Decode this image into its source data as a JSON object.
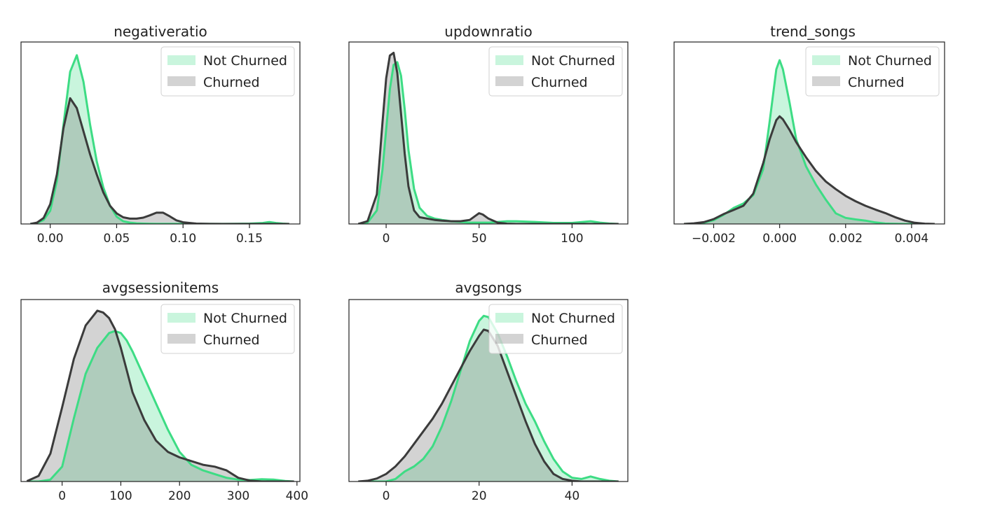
{
  "legend": {
    "not_churned": "Not Churned",
    "churned": "Churned",
    "position": "upper-right"
  },
  "colors": {
    "not_churned_line": "#3ddc84",
    "not_churned_fill": "rgba(61,220,132,0.28)",
    "churned_line": "#3b3b3b",
    "churned_fill": "rgba(120,120,120,0.33)",
    "overlap_tint": "#a3c5b0"
  },
  "chart_data": [
    {
      "type": "area",
      "title": "negativeratio",
      "xlim": [
        -0.022,
        0.188
      ],
      "ylim": [
        0,
        55
      ],
      "xticks": [
        0.0,
        0.05,
        0.1,
        0.15
      ],
      "xtick_labels": [
        "0.00",
        "0.05",
        "0.10",
        "0.15"
      ],
      "x": [
        -0.015,
        -0.01,
        -0.005,
        0.0,
        0.005,
        0.01,
        0.015,
        0.02,
        0.025,
        0.03,
        0.035,
        0.04,
        0.045,
        0.05,
        0.055,
        0.06,
        0.065,
        0.07,
        0.075,
        0.08,
        0.085,
        0.09,
        0.095,
        0.1,
        0.11,
        0.12,
        0.13,
        0.14,
        0.15,
        0.16,
        0.165,
        0.17,
        0.175,
        0.18
      ],
      "series": [
        {
          "name": "Not Churned",
          "values": [
            0,
            0.3,
            1.2,
            4.0,
            13,
            30,
            46,
            51,
            43,
            30,
            19,
            11,
            5.5,
            2.2,
            0.8,
            0.4,
            0.2,
            0.1,
            0.05,
            0.03,
            0.02,
            0.02,
            0.02,
            0.02,
            0.02,
            0.02,
            0.03,
            0.05,
            0.1,
            0.3,
            0.6,
            0.3,
            0.1,
            0
          ]
        },
        {
          "name": "Churned",
          "values": [
            0,
            0.4,
            1.8,
            6.0,
            15,
            29,
            38,
            35,
            28,
            21,
            15,
            9.5,
            5.5,
            3.2,
            2.0,
            1.6,
            1.6,
            1.9,
            2.6,
            3.4,
            3.4,
            2.3,
            1.1,
            0.5,
            0.1,
            0.02,
            0,
            0,
            0,
            0,
            0,
            0,
            0,
            0
          ]
        }
      ]
    },
    {
      "type": "area",
      "title": "updownratio",
      "xlim": [
        -20,
        130
      ],
      "ylim": [
        0,
        0.135
      ],
      "xticks": [
        0,
        50,
        100
      ],
      "xtick_labels": [
        "0",
        "50",
        "100"
      ],
      "x": [
        -15,
        -10,
        -5,
        -2,
        0,
        2,
        4,
        6,
        8,
        10,
        12,
        15,
        18,
        22,
        26,
        30,
        35,
        40,
        45,
        48,
        50,
        52,
        55,
        60,
        65,
        70,
        80,
        90,
        100,
        110,
        115,
        120,
        125
      ],
      "series": [
        {
          "name": "Not Churned",
          "values": [
            0,
            0.001,
            0.01,
            0.04,
            0.07,
            0.1,
            0.118,
            0.12,
            0.11,
            0.085,
            0.055,
            0.026,
            0.012,
            0.006,
            0.004,
            0.003,
            0.002,
            0.0015,
            0.001,
            0.001,
            0.001,
            0.001,
            0.001,
            0.0015,
            0.002,
            0.002,
            0.0015,
            0.0008,
            0.0008,
            0.002,
            0.001,
            0.0003,
            0
          ]
        },
        {
          "name": "Churned",
          "values": [
            0,
            0.002,
            0.022,
            0.075,
            0.108,
            0.125,
            0.127,
            0.112,
            0.082,
            0.052,
            0.028,
            0.01,
            0.005,
            0.004,
            0.003,
            0.0025,
            0.002,
            0.002,
            0.003,
            0.006,
            0.008,
            0.007,
            0.004,
            0.001,
            0.0002,
            0,
            0,
            0,
            0,
            0,
            0,
            0,
            0
          ]
        }
      ]
    },
    {
      "type": "area",
      "title": "trend_songs",
      "xlim": [
        -0.0032,
        0.005
      ],
      "ylim": [
        0,
        1200
      ],
      "xticks": [
        -0.002,
        0.0,
        0.002,
        0.004
      ],
      "xtick_labels": [
        "−0.002",
        "0.000",
        "0.002",
        "0.004"
      ],
      "x": [
        -0.0029,
        -0.0026,
        -0.0023,
        -0.002,
        -0.0017,
        -0.0014,
        -0.0011,
        -0.0008,
        -0.0005,
        -0.0003,
        -0.0001,
        0.0,
        0.0001,
        0.0003,
        0.0005,
        0.0008,
        0.0011,
        0.0014,
        0.0017,
        0.002,
        0.0023,
        0.0026,
        0.0029,
        0.0032,
        0.0035,
        0.0038,
        0.0041,
        0.0044,
        0.0047
      ],
      "series": [
        {
          "name": "Not Churned",
          "values": [
            0,
            2,
            8,
            25,
            60,
            105,
            135,
            190,
            360,
            680,
            1020,
            1080,
            1020,
            800,
            560,
            380,
            260,
            160,
            70,
            40,
            30,
            22,
            10,
            3,
            1,
            0,
            0,
            0,
            0
          ]
        },
        {
          "name": "Churned",
          "values": [
            0,
            4,
            12,
            32,
            65,
            92,
            120,
            200,
            400,
            560,
            685,
            710,
            690,
            620,
            540,
            440,
            350,
            280,
            230,
            185,
            150,
            120,
            95,
            72,
            45,
            22,
            8,
            2,
            0
          ]
        }
      ]
    },
    {
      "type": "area",
      "title": "avgsessionitems",
      "xlim": [
        -70,
        405
      ],
      "ylim": [
        0,
        0.0098
      ],
      "xticks": [
        0,
        100,
        200,
        300,
        400
      ],
      "xtick_labels": [
        "0",
        "100",
        "200",
        "300",
        "400"
      ],
      "x": [
        -60,
        -40,
        -20,
        0,
        20,
        40,
        60,
        70,
        80,
        90,
        100,
        110,
        120,
        140,
        160,
        180,
        200,
        220,
        240,
        260,
        280,
        300,
        320,
        340,
        360,
        380,
        395
      ],
      "series": [
        {
          "name": "Not Churned",
          "values": [
            0,
            0,
            0.0001,
            0.0008,
            0.0034,
            0.0058,
            0.0072,
            0.0076,
            0.008,
            0.0081,
            0.008,
            0.0076,
            0.007,
            0.0056,
            0.0042,
            0.0028,
            0.0016,
            0.0009,
            0.0006,
            0.0004,
            0.0002,
            0.0001,
            8e-05,
            0.00012,
            0.0001,
            3e-05,
            0
          ]
        },
        {
          "name": "Churned",
          "values": [
            2e-05,
            0.0003,
            0.0015,
            0.004,
            0.0066,
            0.0084,
            0.0092,
            0.0091,
            0.0088,
            0.0082,
            0.0072,
            0.006,
            0.0048,
            0.0033,
            0.0022,
            0.0016,
            0.0013,
            0.0011,
            0.0009,
            0.0008,
            0.0006,
            0.0002,
            5e-05,
            0,
            0,
            0,
            0
          ]
        }
      ]
    },
    {
      "type": "area",
      "title": "avgsongs",
      "xlim": [
        -8,
        52
      ],
      "ylim": [
        0,
        0.0725
      ],
      "xticks": [
        0,
        20,
        40
      ],
      "xtick_labels": [
        "0",
        "20",
        "40"
      ],
      "x": [
        -6,
        -4,
        -2,
        0,
        2,
        4,
        6,
        8,
        10,
        12,
        14,
        16,
        18,
        20,
        21,
        22,
        24,
        26,
        28,
        30,
        32,
        34,
        36,
        38,
        40,
        42,
        44,
        46,
        48,
        50
      ],
      "series": [
        {
          "name": "Not Churned",
          "values": [
            0,
            0,
            0,
            0,
            0.001,
            0.004,
            0.006,
            0.009,
            0.014,
            0.022,
            0.032,
            0.044,
            0.056,
            0.064,
            0.066,
            0.0655,
            0.059,
            0.05,
            0.04,
            0.031,
            0.024,
            0.016,
            0.009,
            0.004,
            0.0015,
            0.001,
            0.002,
            0.001,
            0.0003,
            0
          ]
        },
        {
          "name": "Churned",
          "values": [
            0,
            0.0003,
            0.0012,
            0.003,
            0.006,
            0.01,
            0.015,
            0.02,
            0.025,
            0.031,
            0.038,
            0.045,
            0.052,
            0.058,
            0.0605,
            0.06,
            0.054,
            0.044,
            0.034,
            0.024,
            0.015,
            0.008,
            0.003,
            0.001,
            0.0003,
            0,
            0,
            0,
            0,
            0
          ]
        }
      ]
    }
  ]
}
